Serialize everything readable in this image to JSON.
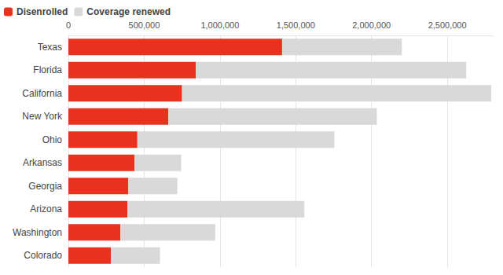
{
  "chart_data": {
    "type": "bar",
    "orientation": "horizontal",
    "stacked": true,
    "grid": true,
    "legend": "top-left",
    "categories": [
      "Texas",
      "Florida",
      "California",
      "New York",
      "Ohio",
      "Arkansas",
      "Georgia",
      "Arizona",
      "Washington",
      "Colorado"
    ],
    "series": [
      {
        "name": "Disenrolled",
        "color": "#e8321e",
        "values": [
          1410000,
          840000,
          750000,
          660000,
          455000,
          437000,
          396000,
          390000,
          344000,
          281000
        ]
      },
      {
        "name": "Coverage renewed",
        "color": "#d9d9d9",
        "values": [
          790000,
          1785000,
          2040000,
          1375000,
          1300000,
          307000,
          323000,
          1167000,
          625000,
          323000
        ]
      }
    ],
    "xlim": [
      0,
      2800000
    ],
    "xticks": [
      0,
      {
        "value": 500000,
        "label": "500,000"
      },
      {
        "value": 1000000,
        "label": "1,000,000"
      },
      {
        "value": 1500000,
        "label": "1,500,000"
      },
      {
        "value": 2000000,
        "label": "2,000,000"
      },
      {
        "value": 2500000,
        "label": "2,500,000"
      }
    ]
  }
}
